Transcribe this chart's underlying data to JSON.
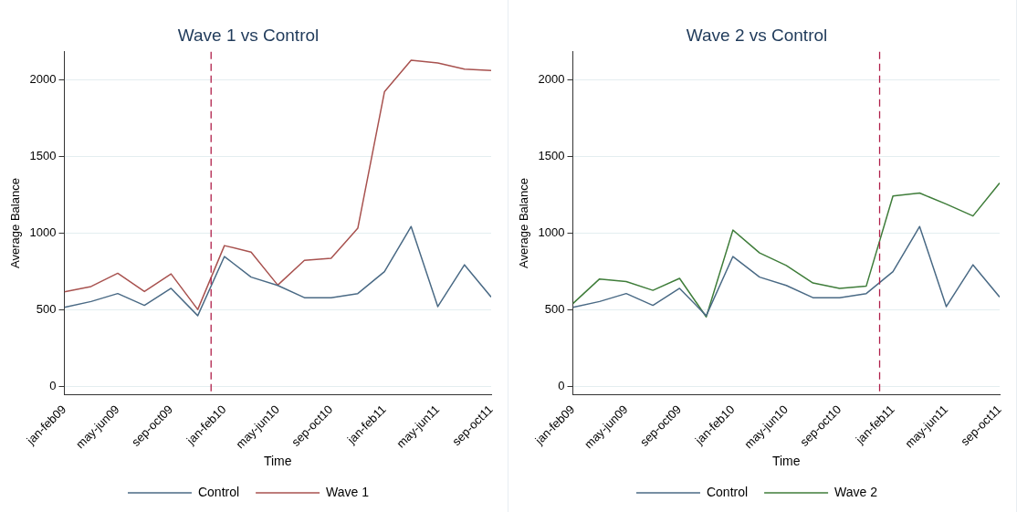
{
  "chart_data": [
    {
      "type": "line",
      "title": "Wave 1 vs Control",
      "xlabel": "Time",
      "ylabel": "Average Balance",
      "x": [
        "2009-01",
        "2009-03",
        "2009-05",
        "2009-07",
        "2009-09",
        "2009-11",
        "2010-01",
        "2010-03",
        "2010-05",
        "2010-07",
        "2010-09",
        "2010-11",
        "2011-01",
        "2011-03",
        "2011-05",
        "2011-07",
        "2011-09"
      ],
      "series": [
        {
          "name": "Control",
          "color": "#4a6a85",
          "values": [
            517,
            555,
            607,
            530,
            641,
            463,
            848,
            714,
            660,
            580,
            580,
            607,
            750,
            1043,
            522,
            794,
            584
          ]
        },
        {
          "name": "Wave 1",
          "color": "#a8524f",
          "values": [
            618,
            653,
            739,
            620,
            735,
            503,
            919,
            877,
            662,
            823,
            836,
            1032,
            1920,
            2126,
            2107,
            2067,
            2059
          ]
        }
      ],
      "xlim": [
        "2009-01",
        "2011-09"
      ],
      "xticks": [
        {
          "value": "2009-01",
          "label": "jan-feb09"
        },
        {
          "value": "2009-05",
          "label": "may-jun09"
        },
        {
          "value": "2009-09",
          "label": "sep-oct09"
        },
        {
          "value": "2010-01",
          "label": "jan-feb10"
        },
        {
          "value": "2010-05",
          "label": "may-jun10"
        },
        {
          "value": "2010-09",
          "label": "sep-oct10"
        },
        {
          "value": "2011-01",
          "label": "jan-feb11"
        },
        {
          "value": "2011-05",
          "label": "may-jun11"
        },
        {
          "value": "2011-09",
          "label": "sep-oct11"
        }
      ],
      "ylim": [
        -50,
        2180
      ],
      "yticks": [
        0,
        500,
        1000,
        1500,
        2000
      ],
      "grid": "y",
      "legend": "bottom",
      "marker": "none",
      "line_style": "solid",
      "ref_lines": [
        {
          "axis": "x",
          "value": "2009-12",
          "color": "#b0204a",
          "line_style": "dashed"
        }
      ]
    },
    {
      "type": "line",
      "title": "Wave 2 vs Control",
      "xlabel": "Time",
      "ylabel": "Average Balance",
      "x": [
        "2009-01",
        "2009-03",
        "2009-05",
        "2009-07",
        "2009-09",
        "2009-11",
        "2010-01",
        "2010-03",
        "2010-05",
        "2010-07",
        "2010-09",
        "2010-11",
        "2011-01",
        "2011-03",
        "2011-05",
        "2011-07",
        "2011-09"
      ],
      "series": [
        {
          "name": "Control",
          "color": "#4a6a85",
          "values": [
            517,
            555,
            607,
            530,
            641,
            463,
            848,
            714,
            660,
            580,
            580,
            607,
            750,
            1043,
            522,
            794,
            584
          ]
        },
        {
          "name": "Wave 2",
          "color": "#3f7d3a",
          "values": [
            542,
            702,
            685,
            628,
            706,
            455,
            1020,
            871,
            790,
            676,
            641,
            656,
            1242,
            1261,
            1189,
            1112,
            1326
          ]
        }
      ],
      "xlim": [
        "2009-01",
        "2011-09"
      ],
      "xticks": [
        {
          "value": "2009-01",
          "label": "jan-feb09"
        },
        {
          "value": "2009-05",
          "label": "may-jun09"
        },
        {
          "value": "2009-09",
          "label": "sep-oct09"
        },
        {
          "value": "2010-01",
          "label": "jan-feb10"
        },
        {
          "value": "2010-05",
          "label": "may-jun10"
        },
        {
          "value": "2010-09",
          "label": "sep-oct10"
        },
        {
          "value": "2011-01",
          "label": "jan-feb11"
        },
        {
          "value": "2011-05",
          "label": "may-jun11"
        },
        {
          "value": "2011-09",
          "label": "sep-oct11"
        }
      ],
      "ylim": [
        -50,
        2180
      ],
      "yticks": [
        0,
        500,
        1000,
        1500,
        2000
      ],
      "grid": "y",
      "legend": "bottom",
      "marker": "none",
      "line_style": "solid",
      "ref_lines": [
        {
          "axis": "x",
          "value": "2010-12",
          "color": "#b0204a",
          "line_style": "dashed"
        }
      ]
    }
  ]
}
